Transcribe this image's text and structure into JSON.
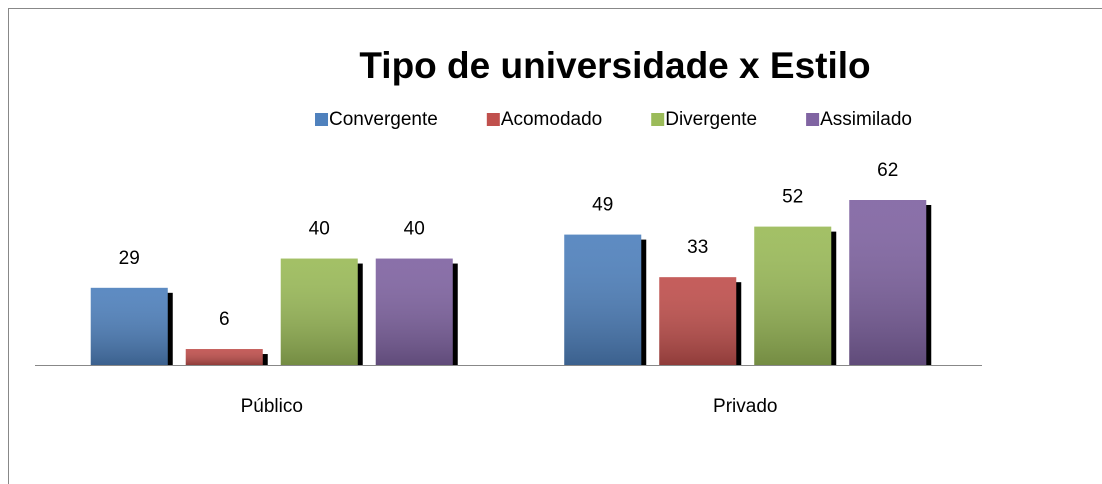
{
  "chart_data": {
    "type": "bar",
    "title": "Tipo de universidade x Estilo",
    "categories": [
      "Público",
      "Privado"
    ],
    "series": [
      {
        "name": "Convergente",
        "color": "#4f81bd",
        "values": [
          29,
          49
        ]
      },
      {
        "name": "Acomodado",
        "color": "#c0504d",
        "values": [
          6,
          33
        ]
      },
      {
        "name": "Divergente",
        "color": "#9bbb59",
        "values": [
          40,
          52
        ]
      },
      {
        "name": "Assimilado",
        "color": "#8064a2",
        "values": [
          40,
          62
        ]
      }
    ],
    "legend": "top",
    "data_labels": true
  }
}
